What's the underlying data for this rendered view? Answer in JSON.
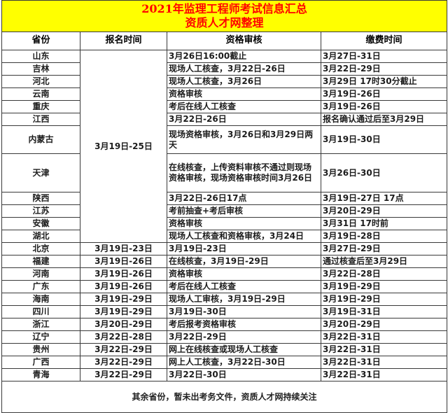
{
  "title": {
    "line1": "2021年监理工程师考试信息汇总",
    "line2": "资质人才网整理"
  },
  "columns": [
    "省份",
    "报名时间",
    "资格审核",
    "缴费时间"
  ],
  "signup_merged": {
    "text": "3月19日-25日",
    "rowspan": 12,
    "red": true
  },
  "rows": [
    {
      "province": "山东",
      "review": "3月26日16:00截止",
      "payment": "3月27日-31日"
    },
    {
      "province": "吉林",
      "review": "现场人工核查，3月22日-26日",
      "payment": "3月22日-29日"
    },
    {
      "province": "河北",
      "review": "现场人工核查，3月26日",
      "payment": "3月29日  17时30分截止"
    },
    {
      "province": "云南",
      "review": "资格审核",
      "payment": "3月19日-26日"
    },
    {
      "province": "重庆",
      "review": "考后在线人工核查",
      "payment": "3月19日-26日"
    },
    {
      "province": "江西",
      "review": "3月22日-26日",
      "payment": "报名确认通过后至3月29日"
    },
    {
      "province": "内蒙古",
      "review": "现场资格审核，3月26日和3月29日两天",
      "payment": "3月19日-30日",
      "height": 40
    },
    {
      "province": "天津",
      "review": "在线核查，上传资料审核不通过则现场资格审核，现场资格审核时间3月26日",
      "payment": "3月26日-30日",
      "height": 55
    },
    {
      "province": "陕西",
      "review": "3月22日-26日17点",
      "payment": "3月19日-27日  17点"
    },
    {
      "province": "江苏",
      "review": "考前抽查+考后审核",
      "payment": "3月20日-29日"
    },
    {
      "province": "安徽",
      "review": "资格审核",
      "payment": "3月31日  17时前"
    },
    {
      "province": "湖北",
      "review": "现场人工核查和资格审核，3月24日",
      "payment": "3月19日-28日"
    },
    {
      "province": "北京",
      "signup": "3月19日-23日",
      "signup_red": true,
      "review": "3月19日-23日",
      "payment": "3月27日-29日"
    },
    {
      "province": "福建",
      "signup": "3月19日-26日",
      "signup_red": true,
      "review": "在线核查，3月19日-29日",
      "payment": "通过核查后至3月29日"
    },
    {
      "province": "河南",
      "signup": "3月19日-26日",
      "signup_red": true,
      "review": "资格审核",
      "payment": "3月22日-28日"
    },
    {
      "province": "广东",
      "signup": "3月19日-26日",
      "signup_red": true,
      "review": "考后在线人工核查",
      "payment": "3月19日-29日"
    },
    {
      "province": "海南",
      "signup": "3月19日-29日",
      "signup_red": true,
      "review": "现场人工审核，3月19日-29日",
      "payment": "3月19日-29日"
    },
    {
      "province": "四川",
      "signup": "3月19日-29日",
      "signup_red": true,
      "review": "3月19日-30日",
      "payment": "3月19日-31日"
    },
    {
      "province": "浙江",
      "signup": "3月20日-29日",
      "signup_red": false,
      "review": "考后报考资格审核",
      "payment": "3月20日-29日"
    },
    {
      "province": "辽宁",
      "signup": "3月22日-28日",
      "signup_red": false,
      "review": "3月22日-29日",
      "payment": "3月22日-31日"
    },
    {
      "province": "贵州",
      "signup": "3月22日-29日",
      "signup_red": false,
      "review": "网上在线核查或现场人工核查",
      "payment": "3月22日-31日"
    },
    {
      "province": "广西",
      "signup": "3月22日-29日",
      "signup_red": false,
      "review": "网上人工核查，3月22日-30日",
      "payment": "3月22日-31日"
    },
    {
      "province": "青海",
      "signup": "3月22日-29日",
      "signup_red": false,
      "review": "3月22日-30日",
      "payment": "3月22日-31日"
    }
  ],
  "footer": {
    "text": "其余省份，暂未出考务文件，资质人才网持续关注"
  },
  "colors": {
    "title_bg": "#ffff00",
    "title_text": "#ff0000",
    "highlight_red": "#d42020",
    "border": "#3a3a3a",
    "body_text": "#1c1c1c"
  }
}
